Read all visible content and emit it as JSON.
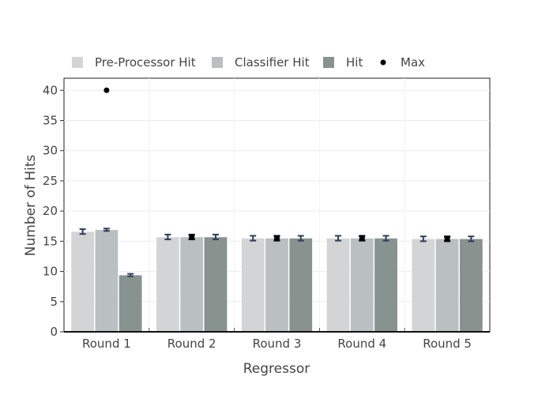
{
  "chart_data": {
    "type": "bar",
    "xlabel": "Regressor",
    "ylabel": "Number of Hits",
    "ylim": [
      0,
      42
    ],
    "yticks": [
      0,
      5,
      10,
      15,
      20,
      25,
      30,
      35,
      40
    ],
    "categories": [
      "Round 1",
      "Round 2",
      "Round 3",
      "Round 4",
      "Round 5"
    ],
    "legend": {
      "placement": "top-left",
      "items": [
        {
          "name": "Pre-Processor Hit",
          "kind": "bar",
          "color": "#d3d4d5"
        },
        {
          "name": "Classifier Hit",
          "kind": "bar",
          "color": "#babfc1"
        },
        {
          "name": "Hit",
          "kind": "bar",
          "color": "#889390"
        },
        {
          "name": "Max",
          "kind": "marker",
          "color": "#000000"
        }
      ]
    },
    "series": [
      {
        "name": "Pre-Processor Hit",
        "type": "bar",
        "color": "#d3d4d5",
        "values": [
          16.6,
          15.7,
          15.5,
          15.5,
          15.4
        ],
        "error": [
          0.4,
          0.4,
          0.4,
          0.4,
          0.4
        ]
      },
      {
        "name": "Classifier Hit",
        "type": "bar",
        "color": "#babfc1",
        "values": [
          16.9,
          15.7,
          15.5,
          15.5,
          15.4
        ],
        "error": [
          0.2,
          0.3,
          0.3,
          0.3,
          0.3
        ]
      },
      {
        "name": "Hit",
        "type": "bar",
        "color": "#889390",
        "values": [
          9.4,
          15.7,
          15.5,
          15.5,
          15.4
        ],
        "error": [
          0.2,
          0.4,
          0.4,
          0.4,
          0.4
        ]
      },
      {
        "name": "Max",
        "type": "marker",
        "color": "#000000",
        "values": [
          40,
          15.7,
          15.5,
          15.5,
          15.4
        ],
        "error": [
          0,
          0.4,
          0.4,
          0.4,
          0.4
        ]
      }
    ],
    "grid": true
  }
}
